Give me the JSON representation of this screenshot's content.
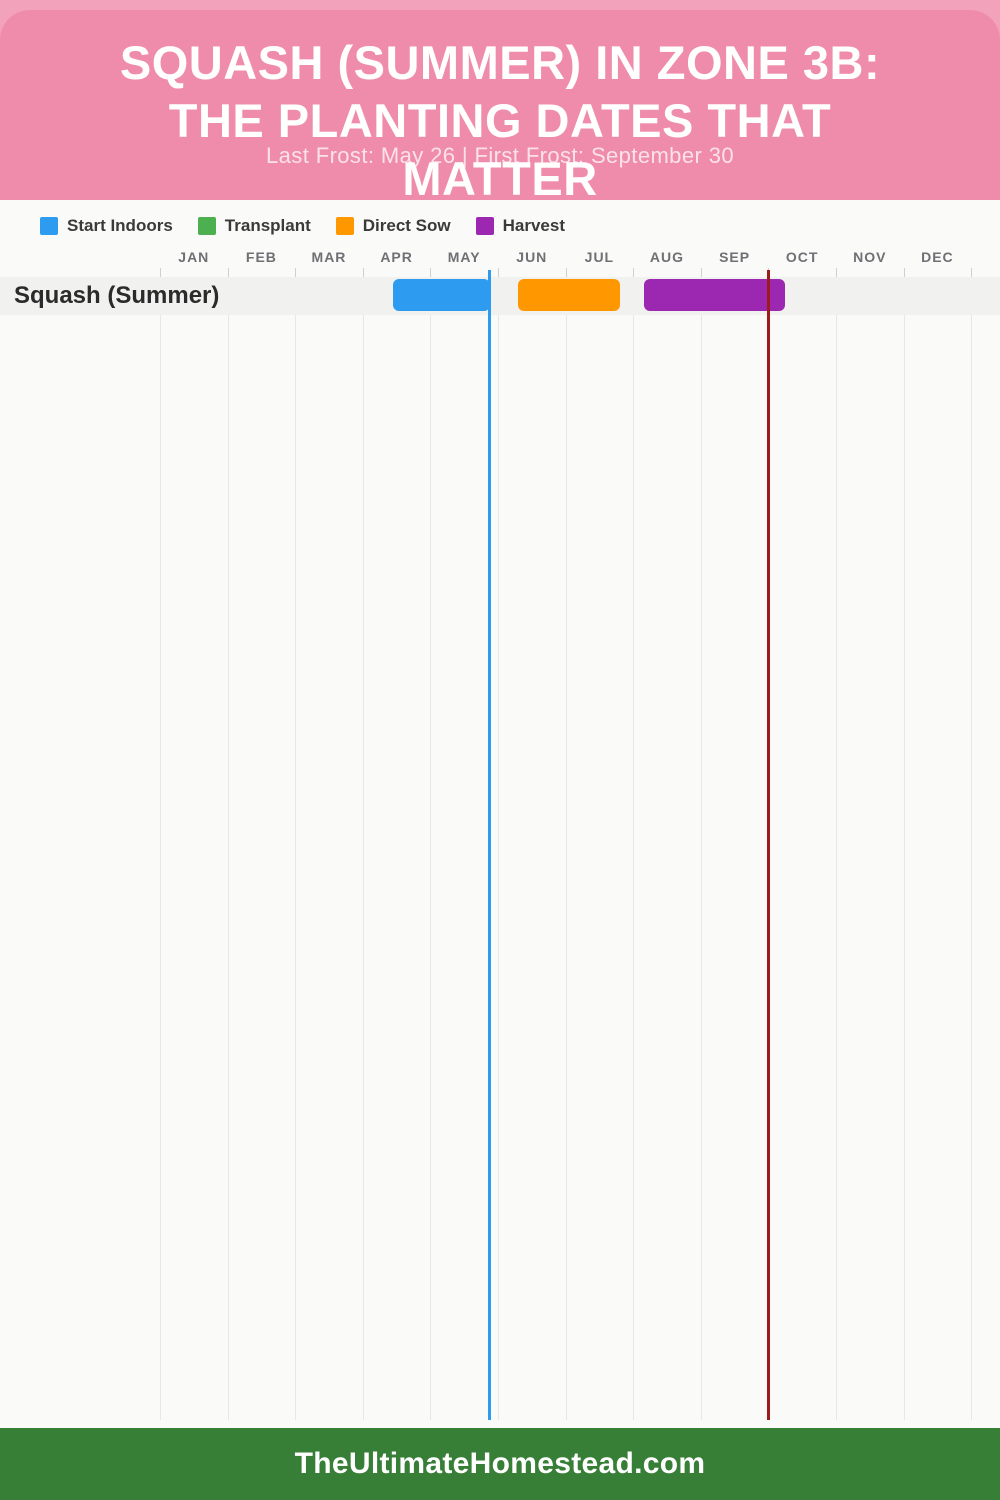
{
  "header": {
    "title_line1": "SQUASH (SUMMER) IN ZONE 3B:",
    "title_line2": "THE PLANTING DATES THAT",
    "title_line3": "MATTER",
    "subtitle": "Last Frost: May 26 | First Frost: September 30"
  },
  "legend": [
    {
      "label": "Start Indoors",
      "color": "#2D9BF0"
    },
    {
      "label": "Transplant",
      "color": "#4CAF50"
    },
    {
      "label": "Direct Sow",
      "color": "#FF9800"
    },
    {
      "label": "Harvest",
      "color": "#9C27B0"
    }
  ],
  "footer": {
    "site": "TheUltimateHomestead.com"
  },
  "chart_data": {
    "type": "bar",
    "subtype": "gantt-planting-calendar",
    "title": "Squash (Summer) in Zone 3b: The Planting Dates That Matter",
    "x": {
      "categories": [
        "JAN",
        "FEB",
        "MAR",
        "APR",
        "MAY",
        "JUN",
        "JUL",
        "AUG",
        "SEP",
        "OCT",
        "NOV",
        "DEC"
      ],
      "range_months": [
        0,
        12
      ]
    },
    "legend_entries": [
      "Start Indoors",
      "Transplant",
      "Direct Sow",
      "Harvest"
    ],
    "legend_position": "top-left",
    "grid": "vertical-monthly",
    "rows": [
      {
        "label": "Squash (Summer)",
        "bars": [
          {
            "series": "Start Indoors",
            "start_month": 3.45,
            "end_month": 4.88
          },
          {
            "series": "Direct Sow",
            "start_month": 5.3,
            "end_month": 6.81
          },
          {
            "series": "Harvest",
            "start_month": 7.16,
            "end_month": 9.25
          }
        ]
      }
    ],
    "markers": [
      {
        "name": "last-frost",
        "label": "Last Frost: May 26",
        "month_position": 4.87,
        "color": "#2D9BF0"
      },
      {
        "name": "first-frost",
        "label": "First Frost: September 30",
        "month_position": 9.0,
        "color": "#9E1B1B"
      }
    ]
  },
  "colors": {
    "header_pink": "#F08CAB",
    "header_top_strip": "#F3A2BC",
    "page_background": "#FAFAF8",
    "row_band": "#F1F1F0",
    "gridline": "#E7E7E4",
    "tick": "#D0D0CD",
    "month_label": "#6F6F74",
    "footer_green": "#377E36"
  }
}
